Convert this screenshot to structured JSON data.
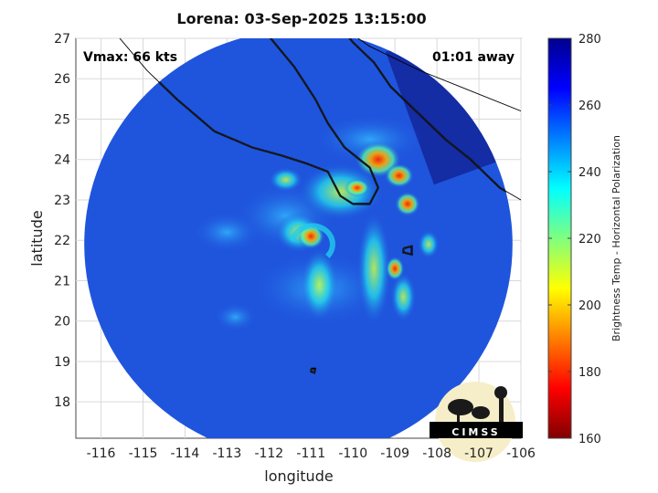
{
  "title": "Lorena: 03-Sep-2025 13:15:00",
  "annotations": {
    "vmax": "Vmax: 66 kts",
    "away": "01:01 away"
  },
  "axes": {
    "xlabel": "longitude",
    "ylabel": "latitude",
    "xlim": [
      -116.6,
      -106
    ],
    "ylim": [
      17.1,
      27
    ],
    "xticks": [
      -116,
      -115,
      -114,
      -113,
      -112,
      -111,
      -110,
      -109,
      -108,
      -107,
      -106
    ],
    "yticks": [
      18,
      19,
      20,
      21,
      22,
      23,
      24,
      25,
      26,
      27
    ]
  },
  "colorbar": {
    "label": "Brightness Temp - Horizontal Polarization",
    "min": 160,
    "max": 280,
    "ticks": [
      160,
      180,
      200,
      220,
      240,
      260,
      280
    ],
    "colormap": "jet"
  },
  "swath": {
    "center_lon": -111.3,
    "center_lat": 21.9,
    "radius_deg": 5.1
  },
  "storm_center": {
    "lon": -111.0,
    "lat": 22.1
  },
  "logo": {
    "text": "CIMSS"
  },
  "colors": {
    "background_field": "#1f55dd",
    "coastline": "#000000",
    "grid": "#d9d9d9"
  }
}
